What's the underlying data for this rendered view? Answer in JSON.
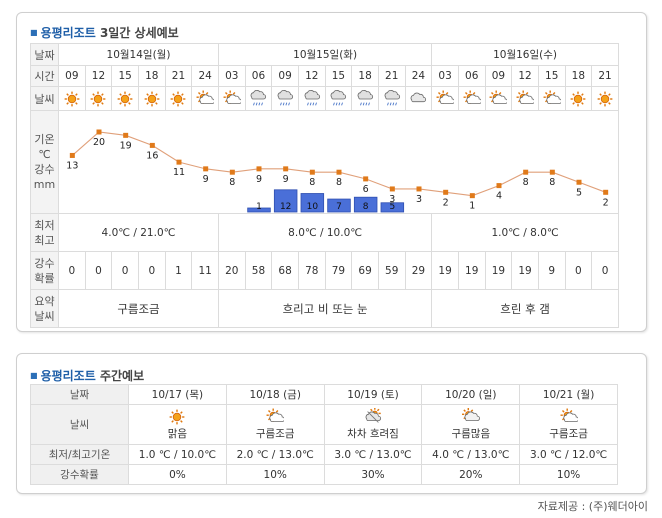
{
  "detail": {
    "title_name": "용평리조트",
    "title_rest": "3일간 상세예보",
    "labels": {
      "date": "날짜",
      "time": "시간",
      "weather": "날씨",
      "temp_line1": "기온",
      "temp_line2": "℃",
      "rain_line1": "강수",
      "rain_line2": "mm",
      "minmax_line1": "최저",
      "minmax_line2": "최고",
      "prob_line1": "강수",
      "prob_line2": "확률",
      "summary_line1": "요약",
      "summary_line2": "날씨"
    },
    "days": [
      {
        "date": "10월14일(월)",
        "hours": [
          "09",
          "12",
          "15",
          "18",
          "21",
          "24"
        ],
        "icons": [
          "sunny",
          "sunny",
          "sunny",
          "sunny",
          "sunny",
          "partly-cloudy"
        ],
        "minmax": "4.0℃ / 21.0℃",
        "probs": [
          "0",
          "0",
          "0",
          "0",
          "1",
          "11"
        ],
        "summary": "구름조금"
      },
      {
        "date": "10월15일(화)",
        "hours": [
          "03",
          "06",
          "09",
          "12",
          "15",
          "18",
          "21",
          "24"
        ],
        "icons": [
          "partly-cloudy",
          "rain-cloud",
          "rain-cloud",
          "rain-cloud",
          "rain-cloud",
          "rain-cloud",
          "rain-cloud",
          "cloudy"
        ],
        "minmax": "8.0℃ / 10.0℃",
        "probs": [
          "20",
          "58",
          "68",
          "78",
          "79",
          "69",
          "59",
          "29"
        ],
        "summary": "흐리고 비 또는 눈"
      },
      {
        "date": "10월16일(수)",
        "hours": [
          "03",
          "06",
          "09",
          "12",
          "15",
          "18",
          "21"
        ],
        "icons": [
          "partly-cloudy",
          "partly-cloudy",
          "partly-cloudy",
          "partly-cloudy",
          "partly-cloudy",
          "sunny",
          "sunny"
        ],
        "minmax": "1.0℃ / 8.0℃",
        "probs": [
          "19",
          "19",
          "19",
          "19",
          "9",
          "0",
          "0"
        ],
        "summary": "흐린 후 갬"
      }
    ]
  },
  "chart_data": {
    "type": "line",
    "x": [
      "10/14 09",
      "10/14 12",
      "10/14 15",
      "10/14 18",
      "10/14 21",
      "10/14 24",
      "10/15 03",
      "10/15 06",
      "10/15 09",
      "10/15 12",
      "10/15 15",
      "10/15 18",
      "10/15 21",
      "10/15 24",
      "10/16 03",
      "10/16 06",
      "10/16 09",
      "10/16 12",
      "10/16 15",
      "10/16 18",
      "10/16 21"
    ],
    "series": [
      {
        "values": [
          13,
          20,
          19,
          16,
          11,
          9,
          8,
          9,
          9,
          8,
          8,
          6,
          3,
          3,
          2,
          1,
          4,
          8,
          8,
          5,
          2
        ],
        "color": "#c9965a"
      }
    ],
    "bars": {
      "values": [
        null,
        null,
        null,
        null,
        null,
        null,
        null,
        1,
        12,
        10,
        7,
        8,
        5,
        null,
        null,
        null,
        null,
        null,
        null,
        null,
        null
      ],
      "color": "#4a6fd8"
    }
  },
  "weekly": {
    "title_name": "용평리조트",
    "title_rest": "주간예보",
    "labels": {
      "date": "날짜",
      "weather": "날씨",
      "minmax": "최저/최고기온",
      "prob": "강수확률"
    },
    "days": [
      {
        "date": "10/17 (목)",
        "icon": "sunny",
        "desc": "맑음",
        "minmax": "1.0 ℃ / 10.0℃",
        "prob": "0%"
      },
      {
        "date": "10/18 (금)",
        "icon": "partly-cloudy",
        "desc": "구름조금",
        "minmax": "2.0 ℃ / 13.0℃",
        "prob": "10%"
      },
      {
        "date": "10/19 (토)",
        "icon": "clearing",
        "desc": "차차 흐려짐",
        "minmax": "3.0 ℃ / 13.0℃",
        "prob": "30%"
      },
      {
        "date": "10/20 (일)",
        "icon": "mostly-cloudy",
        "desc": "구름많음",
        "minmax": "4.0 ℃ / 13.0℃",
        "prob": "20%"
      },
      {
        "date": "10/21 (월)",
        "icon": "partly-cloudy",
        "desc": "구름조금",
        "minmax": "3.0 ℃ / 12.0℃",
        "prob": "10%"
      }
    ]
  },
  "footer": "자료제공 : (주)웨더아이"
}
